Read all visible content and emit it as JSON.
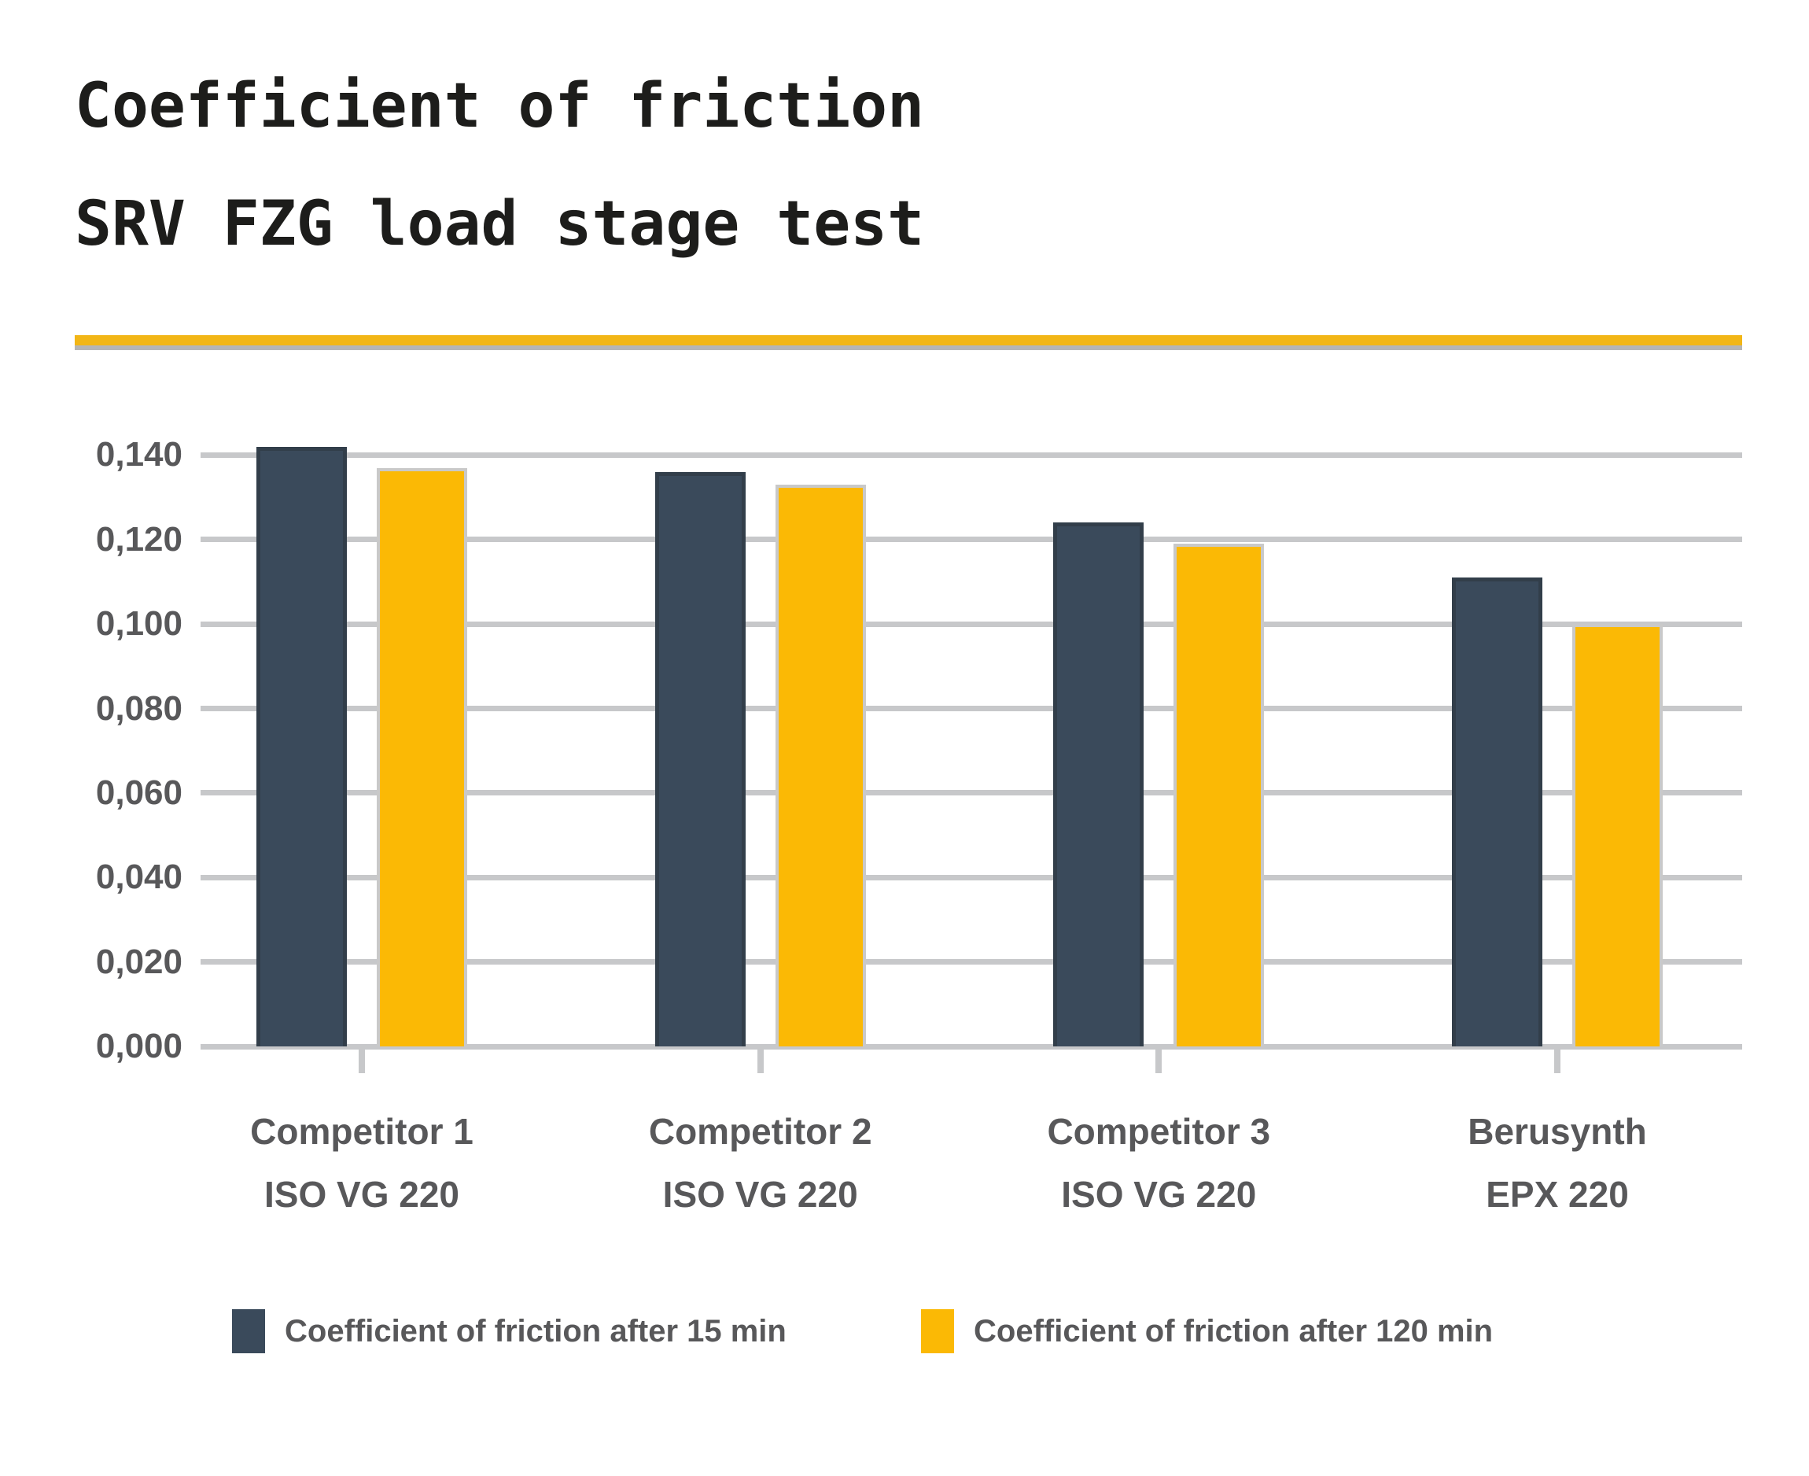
{
  "title": {
    "line1": "Coefficient of friction",
    "line2": "SRV FZG load stage test"
  },
  "divider_color": "#f2b616",
  "chart_data": {
    "type": "bar",
    "title": "Coefficient of friction SRV FZG load stage test",
    "categories": [
      "Competitor 1",
      "Competitor 2",
      "Competitor 3",
      "Berusynth"
    ],
    "category_sublabels": [
      "ISO VG 220",
      "ISO VG 220",
      "ISO VG 220",
      "EPX 220"
    ],
    "series": [
      {
        "name": "Coefficient of friction after 15 min",
        "color": "#3a4a5b",
        "border_color": "#323e4a",
        "values": [
          0.142,
          0.136,
          0.124,
          0.111
        ]
      },
      {
        "name": "Coefficient of friction after 120 min",
        "color": "#fbb905",
        "border_color": "#c9c9c9",
        "values": [
          0.137,
          0.133,
          0.119,
          0.1
        ]
      }
    ],
    "xlabel": "",
    "ylabel": "",
    "ylim": [
      0,
      0.14
    ],
    "ytick_step": 0.02,
    "ytick_labels": [
      "0,140",
      "0,120",
      "0,100",
      "0,080",
      "0,060",
      "0,040",
      "0,020",
      "0,000"
    ],
    "decimal_separator": ",",
    "grid": true,
    "gridline_color": "#c7c8ca",
    "axis_text_color": "#58585a",
    "legend_position": "bottom"
  }
}
